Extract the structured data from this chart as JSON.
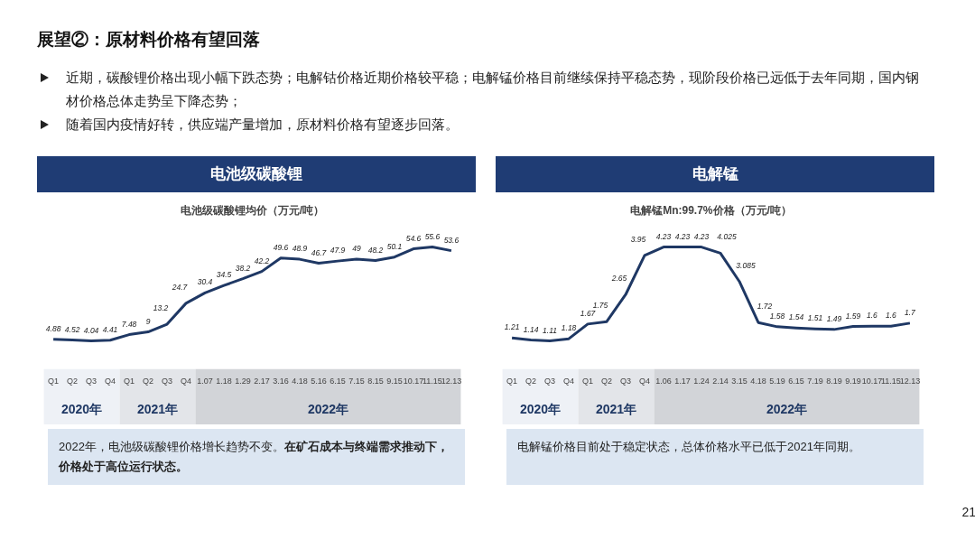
{
  "chart_data": [
    {
      "type": "line",
      "title": "电池级碳酸锂均价（万元/吨）",
      "color": "#1f3864",
      "data_labels": true,
      "marker": "none",
      "line_style": "solid",
      "categories": [
        "Q1",
        "Q2",
        "Q3",
        "Q4",
        "Q1",
        "Q2",
        "Q3",
        "Q4",
        "1.07",
        "1.18",
        "1.29",
        "2.17",
        "3.16",
        "4.18",
        "5.16",
        "6.15",
        "7.15",
        "8.15",
        "9.15",
        "10.17",
        "11.15",
        "12.13"
      ],
      "values": [
        4.88,
        4.52,
        4.04,
        4.41,
        7.48,
        9,
        13.2,
        24.7,
        30.4,
        34.5,
        38.2,
        42.2,
        49.6,
        48.9,
        46.7,
        47.9,
        49,
        48.2,
        50.1,
        54.6,
        55.6,
        53.6
      ],
      "annotations": [
        "展望②：原材料价格有望回落",
        "近期，碳酸锂价格出现小幅下跌态势；电解钴价格近期价格较平稳；电解锰价格目前继续保持平稳态势，现阶段价格已远低于去年同期，国内钢材价格总体走势呈下降态势；",
        "随着国内疫情好转，供应端产量增加，原材料价格有望逐步回落。",
        "电池级碳酸锂",
        "2020年",
        "2021年",
        "2022年",
        "2022年，电池级碳酸锂价格增长趋势不变。",
        "在矿石成本与终端需求推动下，价格处于高位运行状态。"
      ]
    },
    {
      "type": "line",
      "title": "电解锰Mn:99.7%价格（万元/吨）",
      "color": "#1f3864",
      "data_labels": true,
      "marker": "none",
      "line_style": "solid",
      "categories": [
        "Q1",
        "Q2",
        "Q3",
        "Q4",
        "Q1",
        "Q2",
        "Q3",
        "Q4",
        "1.06",
        "1.17",
        "1.24",
        "2.14",
        "3.15",
        "4.18",
        "5.19",
        "6.15",
        "7.19",
        "8.19",
        "9.19",
        "10.17",
        "11.15",
        "12.13"
      ],
      "values": [
        1.21,
        1.14,
        1.11,
        1.18,
        1.67,
        1.75,
        2.65,
        3.95,
        4.23,
        4.23,
        4.23,
        4.025,
        3.085,
        1.72,
        1.58,
        1.54,
        1.51,
        1.49,
        1.59,
        1.6,
        1.6,
        1.7
      ],
      "annotations": [
        "电解锰",
        "2020年",
        "2021年",
        "2022年",
        "电解锰价格目前处于稳定状态，总体价格水平已低于2021年同期。",
        "21"
      ]
    }
  ]
}
